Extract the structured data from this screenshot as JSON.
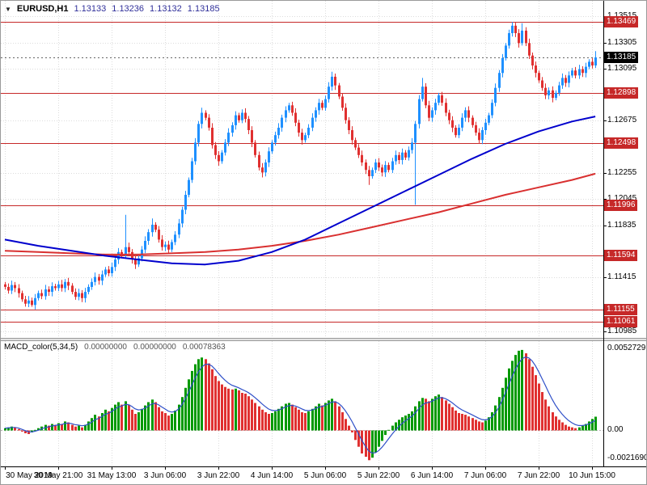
{
  "header": {
    "dropdown_icon": "▼",
    "symbol_label": "EURUSD,H1",
    "ohlc": {
      "open": "1.13133",
      "high": "1.13236",
      "low": "1.13132",
      "close": "1.13185"
    }
  },
  "colors": {
    "bull": "#1E90FF",
    "bear": "#E03030",
    "ma_blue": "#0000CD",
    "ma_red": "#D93030",
    "sr_level": "#C62828",
    "current_badge": "#000000",
    "badge_text": "#FFFFFF",
    "macd_up": "#009900",
    "macd_down": "#E03030",
    "macd_signal": "#3050C8",
    "grid": "#DCDCDC",
    "zero_line": "#B5B5B5",
    "axis_text": "#000000",
    "ohlc_text": "#30309A",
    "bid_line": "#666666"
  },
  "chart_data": {
    "type": "candlestick",
    "main": {
      "axis": {
        "max": 1.1364,
        "min": 1.1093
      },
      "y_ticks": [
        {
          "price": 1.13515,
          "label": "1.13515"
        },
        {
          "price": 1.13305,
          "label": "1.13305"
        },
        {
          "price": 1.13095,
          "label": "1.13095"
        },
        {
          "price": 1.12675,
          "label": "1.12675"
        },
        {
          "price": 1.12255,
          "label": "1.12255"
        },
        {
          "price": 1.12045,
          "label": "1.12045"
        },
        {
          "price": 1.11835,
          "label": "1.11835"
        },
        {
          "price": 1.11415,
          "label": "1.11415"
        },
        {
          "price": 1.10985,
          "label": "1.10985"
        }
      ],
      "price_levels": [
        {
          "price": 1.13469,
          "label": "1.13469"
        },
        {
          "price": 1.12898,
          "label": "1.12898"
        },
        {
          "price": 1.12498,
          "label": "1.12498"
        },
        {
          "price": 1.11996,
          "label": "1.11996"
        },
        {
          "price": 1.11594,
          "label": "1.11594"
        },
        {
          "price": 1.11155,
          "label": "1.11155"
        },
        {
          "price": 1.11061,
          "label": "1.11061"
        }
      ],
      "current_price": {
        "price": 1.13185,
        "label": "1.13185"
      },
      "first_open": 1.1136,
      "closes": [
        1.1134,
        1.1131,
        1.11355,
        1.1133,
        1.1129,
        1.1124,
        1.11205,
        1.1123,
        1.11195,
        1.1125,
        1.1129,
        1.11265,
        1.1132,
        1.113,
        1.11345,
        1.1133,
        1.1136,
        1.1133,
        1.1138,
        1.1135,
        1.113,
        1.1126,
        1.1129,
        1.1125,
        1.113,
        1.1134,
        1.1138,
        1.1142,
        1.1139,
        1.1144,
        1.1148,
        1.1145,
        1.115,
        1.1156,
        1.1162,
        1.1159,
        1.1166,
        1.1162,
        1.1156,
        1.1152,
        1.1157,
        1.1164,
        1.1171,
        1.1178,
        1.1184,
        1.118,
        1.1172,
        1.1166,
        1.1168,
        1.1164,
        1.117,
        1.1176,
        1.1185,
        1.1196,
        1.1208,
        1.122,
        1.1235,
        1.125,
        1.1265,
        1.1274,
        1.127,
        1.1262,
        1.1248,
        1.124,
        1.1235,
        1.1242,
        1.125,
        1.1258,
        1.1264,
        1.1272,
        1.1268,
        1.1274,
        1.1269,
        1.126,
        1.125,
        1.124,
        1.123,
        1.1226,
        1.1234,
        1.1243,
        1.125,
        1.1256,
        1.1262,
        1.127,
        1.1276,
        1.128,
        1.1274,
        1.1266,
        1.1258,
        1.1252,
        1.1256,
        1.1262,
        1.127,
        1.1276,
        1.1282,
        1.1278,
        1.1285,
        1.1295,
        1.1303,
        1.1296,
        1.1287,
        1.1278,
        1.1268,
        1.126,
        1.1252,
        1.1246,
        1.124,
        1.1234,
        1.1228,
        1.1223,
        1.1228,
        1.1234,
        1.123,
        1.1226,
        1.1232,
        1.1228,
        1.1235,
        1.124,
        1.1236,
        1.1242,
        1.1238,
        1.1244,
        1.125,
        1.1265,
        1.1285,
        1.1295,
        1.128,
        1.127,
        1.1276,
        1.1282,
        1.1288,
        1.1282,
        1.1274,
        1.1268,
        1.1262,
        1.1256,
        1.1262,
        1.127,
        1.1276,
        1.127,
        1.1264,
        1.1258,
        1.1252,
        1.126,
        1.1266,
        1.1272,
        1.1282,
        1.1294,
        1.1306,
        1.1318,
        1.1328,
        1.1338,
        1.1344,
        1.1338,
        1.133,
        1.134,
        1.133,
        1.132,
        1.1312,
        1.1306,
        1.13,
        1.1294,
        1.1288,
        1.1292,
        1.1286,
        1.129,
        1.1296,
        1.1302,
        1.1298,
        1.1304,
        1.1308,
        1.1304,
        1.1309,
        1.1306,
        1.1311,
        1.1315,
        1.1312,
        1.13185
      ],
      "wick_overrides": {
        "8": {
          "low": 1.1118
        },
        "36": {
          "high": 1.1192
        },
        "44": {
          "high": 1.1189
        },
        "59": {
          "high": 1.1278
        },
        "77": {
          "low": 1.1222
        },
        "98": {
          "high": 1.1307
        },
        "99": {
          "high": 1.13055
        },
        "109": {
          "low": 1.1216
        },
        "123": {
          "low": 1.12
        },
        "125": {
          "high": 1.1302
        },
        "152": {
          "high": 1.13469
        },
        "155": {
          "high": 1.1346
        },
        "162": {
          "low": 1.1285
        },
        "177": {
          "high": 1.13236,
          "low": 1.131
        }
      },
      "ma_blue": [
        [
          0,
          1.1172
        ],
        [
          10,
          1.1167
        ],
        [
          20,
          1.1163
        ],
        [
          30,
          1.1159
        ],
        [
          40,
          1.1156
        ],
        [
          50,
          1.1153
        ],
        [
          60,
          1.1152
        ],
        [
          70,
          1.1155
        ],
        [
          80,
          1.1162
        ],
        [
          90,
          1.1172
        ],
        [
          100,
          1.1185
        ],
        [
          110,
          1.1198
        ],
        [
          120,
          1.1211
        ],
        [
          130,
          1.1224
        ],
        [
          140,
          1.1237
        ],
        [
          150,
          1.1249
        ],
        [
          160,
          1.1259
        ],
        [
          170,
          1.1267
        ],
        [
          177,
          1.1271
        ]
      ],
      "ma_red": [
        [
          0,
          1.1163
        ],
        [
          10,
          1.1162
        ],
        [
          20,
          1.1161
        ],
        [
          30,
          1.116
        ],
        [
          40,
          1.116
        ],
        [
          50,
          1.1161
        ],
        [
          60,
          1.1162
        ],
        [
          70,
          1.1164
        ],
        [
          80,
          1.1167
        ],
        [
          90,
          1.1171
        ],
        [
          100,
          1.1176
        ],
        [
          110,
          1.1182
        ],
        [
          120,
          1.1188
        ],
        [
          130,
          1.1194
        ],
        [
          140,
          1.1201
        ],
        [
          150,
          1.1208
        ],
        [
          160,
          1.1214
        ],
        [
          170,
          1.122
        ],
        [
          177,
          1.1225
        ]
      ]
    },
    "macd": {
      "label": "MACD_color(5,34,5)",
      "values_text": [
        "0.00000000",
        "0.00000000",
        "0.00078363"
      ],
      "axis": {
        "max": 0.0052729,
        "min": -0.002169
      },
      "y_labels": [
        {
          "value": 0.0052729,
          "label": "0.0052729"
        },
        {
          "value": 0,
          "label": "0.00"
        },
        {
          "value": -0.002169,
          "label": "-0.0021690"
        }
      ],
      "signal_period": 5,
      "values": [
        0.0001,
        0.00015,
        0.0002,
        0.00015,
        5e-05,
        -0.0001,
        -0.0002,
        -0.00025,
        -0.00015,
        0.0,
        0.0001,
        0.0002,
        0.0003,
        0.00025,
        0.00035,
        0.0003,
        0.0004,
        0.00035,
        0.0005,
        0.00045,
        0.0003,
        0.0002,
        0.00025,
        0.00015,
        0.0003,
        0.0005,
        0.0007,
        0.0009,
        0.0008,
        0.001,
        0.0012,
        0.0011,
        0.0013,
        0.0015,
        0.00165,
        0.0015,
        0.0017,
        0.0015,
        0.0012,
        0.00095,
        0.00105,
        0.00125,
        0.00145,
        0.00165,
        0.0018,
        0.00165,
        0.00135,
        0.0011,
        0.001,
        0.00085,
        0.00095,
        0.00115,
        0.0015,
        0.00195,
        0.0025,
        0.003,
        0.0035,
        0.0039,
        0.0042,
        0.0043,
        0.0042,
        0.00395,
        0.0036,
        0.0032,
        0.0029,
        0.0027,
        0.00255,
        0.00245,
        0.0024,
        0.00245,
        0.00235,
        0.0022,
        0.00215,
        0.002,
        0.0018,
        0.0016,
        0.0014,
        0.0012,
        0.00105,
        0.00095,
        0.001,
        0.0011,
        0.00125,
        0.0014,
        0.00155,
        0.0016,
        0.0015,
        0.00135,
        0.0012,
        0.00105,
        0.001,
        0.0011,
        0.00125,
        0.0014,
        0.00155,
        0.00145,
        0.0016,
        0.00175,
        0.00185,
        0.0017,
        0.0014,
        0.00105,
        0.00065,
        0.00025,
        -0.00015,
        -0.0006,
        -0.001,
        -0.0014,
        -0.0016,
        -0.0018,
        -0.00165,
        -0.00135,
        -0.001,
        -0.00065,
        -0.0003,
        0.0,
        0.00025,
        0.00045,
        0.0006,
        0.00075,
        0.00085,
        0.00095,
        0.0011,
        0.0014,
        0.0017,
        0.0019,
        0.00185,
        0.0017,
        0.00185,
        0.002,
        0.0021,
        0.00195,
        0.00175,
        0.00155,
        0.00135,
        0.00115,
        0.001,
        0.00095,
        0.0009,
        0.0008,
        0.0007,
        0.0006,
        0.0005,
        0.00045,
        0.00055,
        0.00075,
        0.00105,
        0.00145,
        0.00195,
        0.0025,
        0.0031,
        0.00365,
        0.0041,
        0.00445,
        0.0047,
        0.00475,
        0.00455,
        0.0042,
        0.00375,
        0.00325,
        0.00275,
        0.00225,
        0.0018,
        0.0014,
        0.00105,
        0.0008,
        0.0006,
        0.00045,
        0.0003,
        0.0002,
        0.00015,
        0.0001,
        0.00015,
        0.00025,
        0.00035,
        0.0005,
        0.00065,
        0.00078363
      ]
    },
    "time_axis": {
      "labels": [
        "30 May 2019",
        "30 May 21:00",
        "31 May 13:00",
        "3 Jun 06:00",
        "3 Jun 22:00",
        "4 Jun 14:00",
        "5 Jun 06:00",
        "5 Jun 22:00",
        "6 Jun 14:00",
        "7 Jun 06:00",
        "7 Jun 22:00",
        "10 Jun 15:00"
      ]
    }
  }
}
